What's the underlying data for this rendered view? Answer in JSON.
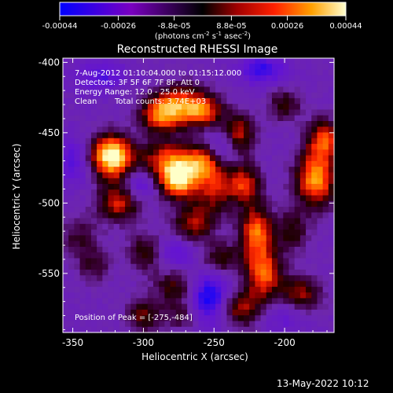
{
  "chart_data": {
    "type": "heatmap",
    "title": "Reconstructed RHESSI Image",
    "xlabel": "Heliocentric X (arcsec)",
    "ylabel": "Heliocentric Y (arcsec)",
    "xlim": [
      -357,
      -165
    ],
    "ylim": [
      -592,
      -397
    ],
    "x_ticks": [
      "-350",
      "-300",
      "-250",
      "-200"
    ],
    "x_tick_values": [
      -350,
      -300,
      -250,
      -200
    ],
    "y_ticks": [
      "-400",
      "-450",
      "-500",
      "-550"
    ],
    "y_tick_values": [
      -400,
      -450,
      -500,
      -550
    ],
    "colorbar": {
      "ticks": [
        "-0.00044",
        "-0.00026",
        "-8.8e-05",
        "8.8e-05",
        "0.00026",
        "0.00044"
      ],
      "tick_values": [
        -0.00044,
        -0.00026,
        -8.8e-05,
        8.8e-05,
        0.00026,
        0.00044
      ],
      "range": [
        -0.00044,
        0.00044
      ],
      "unit_label": {
        "a": "(photons cm",
        "a_sup": "-2",
        "b": " s",
        "b_sup": "-1",
        "c": " asec",
        "c_sup": "-2",
        "d": ")"
      }
    },
    "annotations": {
      "time": "7-Aug-2012 01:10:04.000 to 01:15:12.000",
      "detectors": "Detectors: 3F 5F 6F 7F 8F, Att 0",
      "energy": "Energy Range: 12.0 - 25.0 keV",
      "method": "Clean",
      "counts": "Total counts: 3.74E+03",
      "peak": "Position of Peak = [-275,-484]"
    },
    "peak_position": [
      -275,
      -484
    ],
    "sources": [
      {
        "x": -275,
        "y": -484,
        "amp": 1.0,
        "sx": 9,
        "sy": 9
      },
      {
        "x": -282,
        "y": -470,
        "amp": 0.7,
        "sx": 14,
        "sy": 10
      },
      {
        "x": -288,
        "y": -437,
        "amp": 0.75,
        "sx": 10,
        "sy": 9
      },
      {
        "x": -272,
        "y": -430,
        "amp": 0.65,
        "sx": 12,
        "sy": 10
      },
      {
        "x": -257,
        "y": -435,
        "amp": 0.6,
        "sx": 10,
        "sy": 8
      },
      {
        "x": -233,
        "y": -452,
        "amp": 0.7,
        "sx": 8,
        "sy": 10
      },
      {
        "x": -322,
        "y": -472,
        "amp": 0.7,
        "sx": 11,
        "sy": 10
      },
      {
        "x": -317,
        "y": -500,
        "amp": 0.65,
        "sx": 11,
        "sy": 9
      },
      {
        "x": -323,
        "y": -462,
        "amp": 0.7,
        "sx": 10,
        "sy": 9
      },
      {
        "x": -250,
        "y": -488,
        "amp": 0.6,
        "sx": 10,
        "sy": 14
      },
      {
        "x": -265,
        "y": -515,
        "amp": 0.55,
        "sx": 10,
        "sy": 9
      },
      {
        "x": -228,
        "y": -487,
        "amp": 0.65,
        "sx": 8,
        "sy": 10
      },
      {
        "x": -220,
        "y": -520,
        "amp": 0.8,
        "sx": 8,
        "sy": 12
      },
      {
        "x": -215,
        "y": -550,
        "amp": 0.8,
        "sx": 9,
        "sy": 13
      },
      {
        "x": -178,
        "y": -483,
        "amp": 0.9,
        "sx": 10,
        "sy": 14
      },
      {
        "x": -172,
        "y": -455,
        "amp": 0.7,
        "sx": 8,
        "sy": 10
      },
      {
        "x": -232,
        "y": -575,
        "amp": 0.6,
        "sx": 11,
        "sy": 9
      },
      {
        "x": -188,
        "y": -565,
        "amp": 0.55,
        "sx": 10,
        "sy": 9
      },
      {
        "x": -275,
        "y": -560,
        "amp": 0.5,
        "sx": 12,
        "sy": 9
      },
      {
        "x": -298,
        "y": -535,
        "amp": 0.45,
        "sx": 9,
        "sy": 9
      },
      {
        "x": -300,
        "y": -580,
        "amp": 0.45,
        "sx": 8,
        "sy": 8
      },
      {
        "x": -258,
        "y": -470,
        "amp": 0.55,
        "sx": 8,
        "sy": 8
      },
      {
        "x": -245,
        "y": -540,
        "amp": 0.45,
        "sx": 10,
        "sy": 8
      },
      {
        "x": -200,
        "y": -430,
        "amp": 0.4,
        "sx": 8,
        "sy": 8
      },
      {
        "x": -270,
        "y": -580,
        "amp": 0.4,
        "sx": 10,
        "sy": 8
      },
      {
        "x": -345,
        "y": -525,
        "amp": 0.3,
        "sx": 10,
        "sy": 10
      },
      {
        "x": -335,
        "y": -545,
        "amp": 0.3,
        "sx": 8,
        "sy": 8
      },
      {
        "x": -195,
        "y": -520,
        "amp": 0.4,
        "sx": 8,
        "sy": 10
      }
    ],
    "negatives": [
      {
        "x": -255,
        "y": -568,
        "amp": 0.8,
        "sx": 12,
        "sy": 14
      },
      {
        "x": -242,
        "y": -460,
        "amp": 0.45,
        "sx": 9,
        "sy": 9
      },
      {
        "x": -303,
        "y": -487,
        "amp": 0.45,
        "sx": 8,
        "sy": 9
      },
      {
        "x": -278,
        "y": -535,
        "amp": 0.4,
        "sx": 10,
        "sy": 8
      },
      {
        "x": -215,
        "y": -405,
        "amp": 0.5,
        "sx": 12,
        "sy": 8
      },
      {
        "x": -330,
        "y": -410,
        "amp": 0.4,
        "sx": 12,
        "sy": 8
      },
      {
        "x": -350,
        "y": -470,
        "amp": 0.4,
        "sx": 10,
        "sy": 12
      },
      {
        "x": -200,
        "y": -580,
        "amp": 0.3,
        "sx": 12,
        "sy": 8
      }
    ]
  },
  "footer": {
    "date": "13-May-2022 10:12"
  }
}
